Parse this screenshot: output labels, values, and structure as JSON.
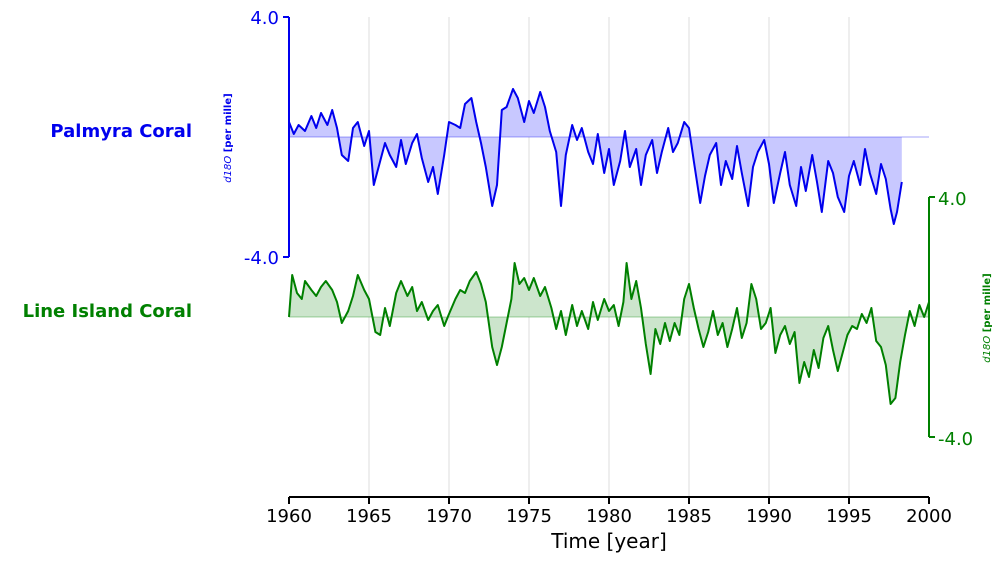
{
  "chart_data": {
    "type": "line",
    "xlabel": "Time [year]",
    "xlim": [
      1960,
      2000
    ],
    "xticks": [
      "1960",
      "1965",
      "1970",
      "1975",
      "1980",
      "1985",
      "1990",
      "1995",
      "2000"
    ],
    "grid": "vertical",
    "series": [
      {
        "name": "Palmyra Coral",
        "color": "#0000ee",
        "fill_color": "#c8c8ff",
        "ylabel_prefix": "d18O",
        "ylabel_suffix": " [per mille]",
        "yticks": [
          "4.0",
          "-4.0"
        ],
        "ylim": [
          -4.0,
          4.0
        ],
        "baseline": 0.0,
        "points": [
          [
            1960.0,
            0.5
          ],
          [
            1960.3,
            0.1
          ],
          [
            1960.6,
            0.4
          ],
          [
            1961.0,
            0.2
          ],
          [
            1961.4,
            0.7
          ],
          [
            1961.7,
            0.3
          ],
          [
            1962.0,
            0.8
          ],
          [
            1962.4,
            0.4
          ],
          [
            1962.7,
            0.9
          ],
          [
            1963.0,
            0.3
          ],
          [
            1963.3,
            -0.6
          ],
          [
            1963.7,
            -0.8
          ],
          [
            1964.0,
            0.3
          ],
          [
            1964.3,
            0.5
          ],
          [
            1964.7,
            -0.3
          ],
          [
            1965.0,
            0.2
          ],
          [
            1965.3,
            -1.6
          ],
          [
            1965.7,
            -0.8
          ],
          [
            1966.0,
            -0.2
          ],
          [
            1966.3,
            -0.6
          ],
          [
            1966.7,
            -1.0
          ],
          [
            1967.0,
            -0.1
          ],
          [
            1967.3,
            -0.9
          ],
          [
            1967.7,
            -0.2
          ],
          [
            1968.0,
            0.1
          ],
          [
            1968.3,
            -0.7
          ],
          [
            1968.7,
            -1.5
          ],
          [
            1969.0,
            -1.0
          ],
          [
            1969.3,
            -1.9
          ],
          [
            1969.7,
            -0.6
          ],
          [
            1970.0,
            0.5
          ],
          [
            1970.4,
            0.4
          ],
          [
            1970.7,
            0.3
          ],
          [
            1971.0,
            1.1
          ],
          [
            1971.4,
            1.3
          ],
          [
            1971.7,
            0.5
          ],
          [
            1972.0,
            -0.2
          ],
          [
            1972.3,
            -1.0
          ],
          [
            1972.7,
            -2.3
          ],
          [
            1973.0,
            -1.6
          ],
          [
            1973.3,
            0.9
          ],
          [
            1973.6,
            1.0
          ],
          [
            1974.0,
            1.6
          ],
          [
            1974.3,
            1.3
          ],
          [
            1974.7,
            0.5
          ],
          [
            1975.0,
            1.2
          ],
          [
            1975.3,
            0.8
          ],
          [
            1975.7,
            1.5
          ],
          [
            1976.0,
            1.0
          ],
          [
            1976.3,
            0.2
          ],
          [
            1976.7,
            -0.5
          ],
          [
            1977.0,
            -2.3
          ],
          [
            1977.3,
            -0.6
          ],
          [
            1977.7,
            0.4
          ],
          [
            1978.0,
            -0.1
          ],
          [
            1978.3,
            0.3
          ],
          [
            1978.7,
            -0.5
          ],
          [
            1979.0,
            -0.9
          ],
          [
            1979.3,
            0.1
          ],
          [
            1979.7,
            -1.2
          ],
          [
            1980.0,
            -0.4
          ],
          [
            1980.3,
            -1.6
          ],
          [
            1980.7,
            -0.8
          ],
          [
            1981.0,
            0.2
          ],
          [
            1981.3,
            -1.0
          ],
          [
            1981.7,
            -0.4
          ],
          [
            1982.0,
            -1.6
          ],
          [
            1982.3,
            -0.6
          ],
          [
            1982.7,
            -0.1
          ],
          [
            1983.0,
            -1.2
          ],
          [
            1983.3,
            -0.5
          ],
          [
            1983.7,
            0.3
          ],
          [
            1984.0,
            -0.5
          ],
          [
            1984.3,
            -0.2
          ],
          [
            1984.7,
            0.5
          ],
          [
            1985.0,
            0.3
          ],
          [
            1985.3,
            -0.8
          ],
          [
            1985.7,
            -2.2
          ],
          [
            1986.0,
            -1.3
          ],
          [
            1986.3,
            -0.6
          ],
          [
            1986.7,
            -0.2
          ],
          [
            1987.0,
            -1.6
          ],
          [
            1987.3,
            -0.8
          ],
          [
            1987.7,
            -1.4
          ],
          [
            1988.0,
            -0.3
          ],
          [
            1988.3,
            -1.2
          ],
          [
            1988.7,
            -2.3
          ],
          [
            1989.0,
            -1.0
          ],
          [
            1989.3,
            -0.5
          ],
          [
            1989.7,
            -0.1
          ],
          [
            1990.0,
            -0.9
          ],
          [
            1990.3,
            -2.2
          ],
          [
            1990.7,
            -1.2
          ],
          [
            1991.0,
            -0.5
          ],
          [
            1991.3,
            -1.6
          ],
          [
            1991.7,
            -2.3
          ],
          [
            1992.0,
            -1.0
          ],
          [
            1992.3,
            -1.8
          ],
          [
            1992.7,
            -0.6
          ],
          [
            1993.0,
            -1.5
          ],
          [
            1993.3,
            -2.5
          ],
          [
            1993.7,
            -0.8
          ],
          [
            1994.0,
            -1.2
          ],
          [
            1994.3,
            -2.0
          ],
          [
            1994.7,
            -2.5
          ],
          [
            1995.0,
            -1.3
          ],
          [
            1995.3,
            -0.8
          ],
          [
            1995.7,
            -1.6
          ],
          [
            1996.0,
            -0.4
          ],
          [
            1996.3,
            -1.2
          ],
          [
            1996.7,
            -1.9
          ],
          [
            1997.0,
            -0.9
          ],
          [
            1997.3,
            -1.4
          ],
          [
            1997.6,
            -2.4
          ],
          [
            1997.8,
            -2.9
          ],
          [
            1998.0,
            -2.5
          ],
          [
            1998.3,
            -1.5
          ]
        ]
      },
      {
        "name": "Line Island Coral",
        "color": "#008000",
        "fill_color": "#cce5cc",
        "ylabel_prefix": "d18O",
        "ylabel_suffix": " [per mille]",
        "yticks": [
          "4.0",
          "-4.0"
        ],
        "ylim": [
          -4.0,
          4.0
        ],
        "baseline": 0.0,
        "points": [
          [
            1960.0,
            0.0
          ],
          [
            1960.2,
            1.4
          ],
          [
            1960.5,
            0.8
          ],
          [
            1960.8,
            0.6
          ],
          [
            1961.0,
            1.2
          ],
          [
            1961.4,
            0.9
          ],
          [
            1961.7,
            0.7
          ],
          [
            1962.0,
            1.0
          ],
          [
            1962.3,
            1.2
          ],
          [
            1962.7,
            0.9
          ],
          [
            1963.0,
            0.5
          ],
          [
            1963.3,
            -0.2
          ],
          [
            1963.7,
            0.2
          ],
          [
            1964.0,
            0.7
          ],
          [
            1964.3,
            1.4
          ],
          [
            1964.7,
            0.9
          ],
          [
            1965.0,
            0.6
          ],
          [
            1965.4,
            -0.5
          ],
          [
            1965.7,
            -0.6
          ],
          [
            1966.0,
            0.3
          ],
          [
            1966.3,
            -0.3
          ],
          [
            1966.7,
            0.8
          ],
          [
            1967.0,
            1.2
          ],
          [
            1967.4,
            0.7
          ],
          [
            1967.7,
            1.0
          ],
          [
            1968.0,
            0.2
          ],
          [
            1968.3,
            0.5
          ],
          [
            1968.7,
            -0.1
          ],
          [
            1969.0,
            0.2
          ],
          [
            1969.3,
            0.4
          ],
          [
            1969.7,
            -0.3
          ],
          [
            1970.0,
            0.1
          ],
          [
            1970.4,
            0.6
          ],
          [
            1970.7,
            0.9
          ],
          [
            1971.0,
            0.8
          ],
          [
            1971.3,
            1.2
          ],
          [
            1971.7,
            1.5
          ],
          [
            1972.0,
            1.1
          ],
          [
            1972.3,
            0.5
          ],
          [
            1972.7,
            -1.0
          ],
          [
            1973.0,
            -1.6
          ],
          [
            1973.3,
            -1.0
          ],
          [
            1973.6,
            -0.2
          ],
          [
            1973.9,
            0.6
          ],
          [
            1974.1,
            1.8
          ],
          [
            1974.4,
            1.1
          ],
          [
            1974.7,
            1.3
          ],
          [
            1975.0,
            0.9
          ],
          [
            1975.3,
            1.3
          ],
          [
            1975.7,
            0.7
          ],
          [
            1976.0,
            1.0
          ],
          [
            1976.4,
            0.3
          ],
          [
            1976.7,
            -0.4
          ],
          [
            1977.0,
            0.2
          ],
          [
            1977.3,
            -0.6
          ],
          [
            1977.7,
            0.4
          ],
          [
            1978.0,
            -0.3
          ],
          [
            1978.3,
            0.2
          ],
          [
            1978.7,
            -0.4
          ],
          [
            1979.0,
            0.5
          ],
          [
            1979.3,
            -0.1
          ],
          [
            1979.7,
            0.6
          ],
          [
            1980.0,
            0.2
          ],
          [
            1980.3,
            0.4
          ],
          [
            1980.6,
            -0.3
          ],
          [
            1980.9,
            0.5
          ],
          [
            1981.1,
            1.8
          ],
          [
            1981.4,
            0.6
          ],
          [
            1981.7,
            1.2
          ],
          [
            1982.0,
            0.3
          ],
          [
            1982.3,
            -0.9
          ],
          [
            1982.6,
            -1.9
          ],
          [
            1982.9,
            -0.4
          ],
          [
            1983.2,
            -0.9
          ],
          [
            1983.5,
            -0.2
          ],
          [
            1983.8,
            -0.8
          ],
          [
            1984.1,
            -0.2
          ],
          [
            1984.4,
            -0.6
          ],
          [
            1984.7,
            0.6
          ],
          [
            1985.0,
            1.1
          ],
          [
            1985.3,
            0.3
          ],
          [
            1985.6,
            -0.4
          ],
          [
            1985.9,
            -1.0
          ],
          [
            1986.2,
            -0.5
          ],
          [
            1986.5,
            0.2
          ],
          [
            1986.8,
            -0.6
          ],
          [
            1987.1,
            -0.2
          ],
          [
            1987.4,
            -1.0
          ],
          [
            1987.7,
            -0.4
          ],
          [
            1988.0,
            0.3
          ],
          [
            1988.3,
            -0.7
          ],
          [
            1988.6,
            -0.2
          ],
          [
            1988.9,
            1.1
          ],
          [
            1989.2,
            0.6
          ],
          [
            1989.5,
            -0.4
          ],
          [
            1989.8,
            -0.2
          ],
          [
            1990.1,
            0.3
          ],
          [
            1990.4,
            -1.2
          ],
          [
            1990.7,
            -0.6
          ],
          [
            1991.0,
            -0.3
          ],
          [
            1991.3,
            -0.9
          ],
          [
            1991.6,
            -0.5
          ],
          [
            1991.9,
            -2.2
          ],
          [
            1992.2,
            -1.5
          ],
          [
            1992.5,
            -2.0
          ],
          [
            1992.8,
            -1.1
          ],
          [
            1993.1,
            -1.7
          ],
          [
            1993.4,
            -0.7
          ],
          [
            1993.7,
            -0.3
          ],
          [
            1994.0,
            -1.1
          ],
          [
            1994.3,
            -1.8
          ],
          [
            1994.6,
            -1.2
          ],
          [
            1994.9,
            -0.6
          ],
          [
            1995.2,
            -0.3
          ],
          [
            1995.5,
            -0.4
          ],
          [
            1995.8,
            0.1
          ],
          [
            1996.1,
            -0.2
          ],
          [
            1996.4,
            0.3
          ],
          [
            1996.7,
            -0.8
          ],
          [
            1997.0,
            -1.0
          ],
          [
            1997.3,
            -1.6
          ],
          [
            1997.6,
            -2.9
          ],
          [
            1997.9,
            -2.7
          ],
          [
            1998.2,
            -1.5
          ],
          [
            1998.5,
            -0.6
          ],
          [
            1998.8,
            0.2
          ],
          [
            1999.1,
            -0.3
          ],
          [
            1999.4,
            0.4
          ],
          [
            1999.7,
            0.0
          ],
          [
            2000.0,
            0.5
          ]
        ]
      }
    ]
  }
}
